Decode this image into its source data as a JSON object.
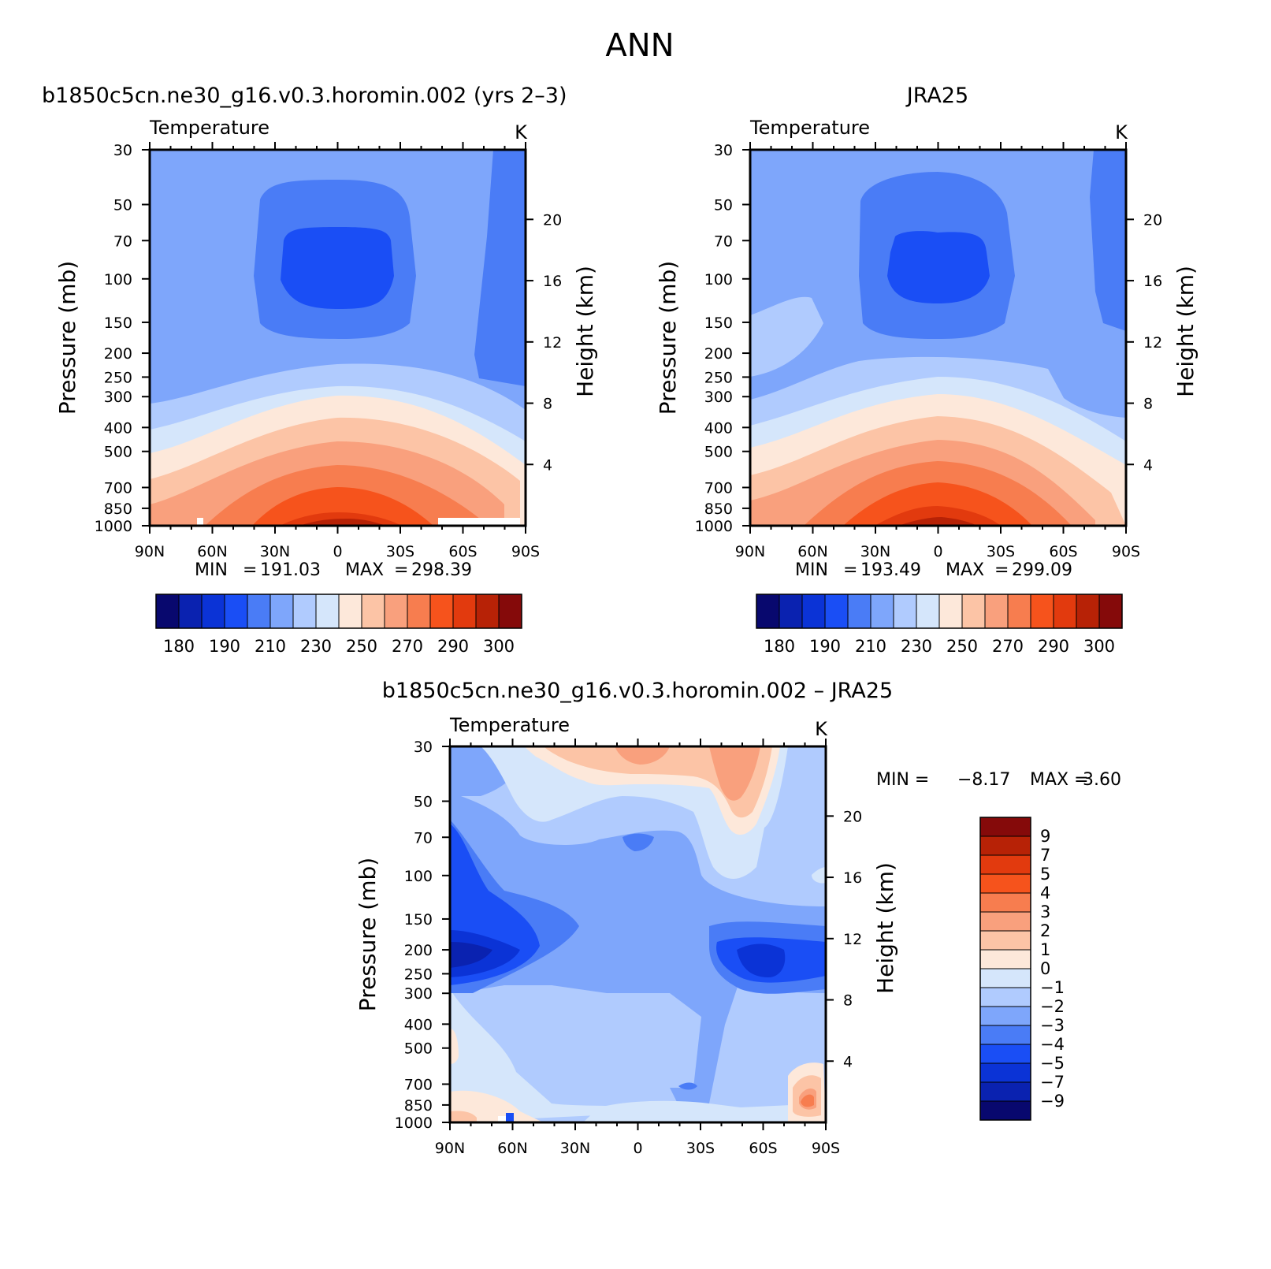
{
  "page_title": "ANN",
  "chart_data": [
    {
      "type": "contour",
      "title": "b1850c5cn.ne30_g16.v0.3.horomin.002 (yrs 2–3)",
      "left_string": "Temperature",
      "right_string": "K",
      "ylabel": "Pressure (mb)",
      "ylabel_right": "Height (km)",
      "pressure_ticks": [
        "30",
        "50",
        "70",
        "100",
        "150",
        "200",
        "250",
        "300",
        "400",
        "500",
        "700",
        "850",
        "1000"
      ],
      "height_ticks": [
        "20",
        "16",
        "12",
        "8",
        "4"
      ],
      "lat_ticks": [
        "90N",
        "60N",
        "30N",
        "0",
        "30S",
        "60S",
        "90S"
      ],
      "min_label": "MIN",
      "min": "191.03",
      "max_label": "MAX",
      "max": "298.39",
      "colorbar_labels": [
        "180",
        "190",
        "210",
        "230",
        "250",
        "270",
        "290",
        "300"
      ],
      "jet_center_pressure_mb": 90,
      "surface_temperature_K": 298
    },
    {
      "type": "contour",
      "title": "JRA25",
      "left_string": "Temperature",
      "right_string": "K",
      "ylabel": "Pressure (mb)",
      "ylabel_right": "Height (km)",
      "pressure_ticks": [
        "30",
        "50",
        "70",
        "100",
        "150",
        "200",
        "250",
        "300",
        "400",
        "500",
        "700",
        "850",
        "1000"
      ],
      "height_ticks": [
        "20",
        "16",
        "12",
        "8",
        "4"
      ],
      "lat_ticks": [
        "90N",
        "60N",
        "30N",
        "0",
        "30S",
        "60S",
        "90S"
      ],
      "min_label": "MIN",
      "min": "193.49",
      "max_label": "MAX",
      "max": "299.09",
      "colorbar_labels": [
        "180",
        "190",
        "210",
        "230",
        "250",
        "270",
        "290",
        "300"
      ],
      "jet_center_pressure_mb": 90,
      "surface_temperature_K": 299
    },
    {
      "type": "contour_difference",
      "title": "b1850c5cn.ne30_g16.v0.3.horomin.002 – JRA25",
      "left_string": "Temperature",
      "right_string": "K",
      "ylabel": "Pressure (mb)",
      "ylabel_right": "Height (km)",
      "pressure_ticks": [
        "30",
        "50",
        "70",
        "100",
        "150",
        "200",
        "250",
        "300",
        "400",
        "500",
        "700",
        "850",
        "1000"
      ],
      "height_ticks": [
        "20",
        "16",
        "12",
        "8",
        "4"
      ],
      "lat_ticks": [
        "90N",
        "60N",
        "30N",
        "0",
        "30S",
        "60S",
        "90S"
      ],
      "min_label": "MIN =",
      "min": "−8.17",
      "max_label": "MAX =",
      "max": "3.60",
      "colorbar_labels": [
        "9",
        "7",
        "5",
        "4",
        "3",
        "2",
        "1",
        "0",
        "−1",
        "−2",
        "−3",
        "−4",
        "−5",
        "−7",
        "−9"
      ]
    }
  ],
  "colors": {
    "temp_scale": [
      "#08086e",
      "#0a22b0",
      "#0b33d6",
      "#1a4ef5",
      "#4a7cf6",
      "#7ea6fb",
      "#b0cbfe",
      "#d5e6fb",
      "#fde8da",
      "#fcc4a6",
      "#f9a07d",
      "#f77d4f",
      "#f6531c",
      "#e23a0e",
      "#b72206",
      "#850a0a"
    ],
    "diff_scale": [
      "#850a0a",
      "#b72206",
      "#e23a0e",
      "#f6531c",
      "#f77d4f",
      "#f9a07d",
      "#fcc4a6",
      "#fde8da",
      "#d5e6fb",
      "#b0cbfe",
      "#7ea6fb",
      "#4a7cf6",
      "#1a4ef5",
      "#0b33d6",
      "#0a22b0",
      "#08086e"
    ]
  }
}
